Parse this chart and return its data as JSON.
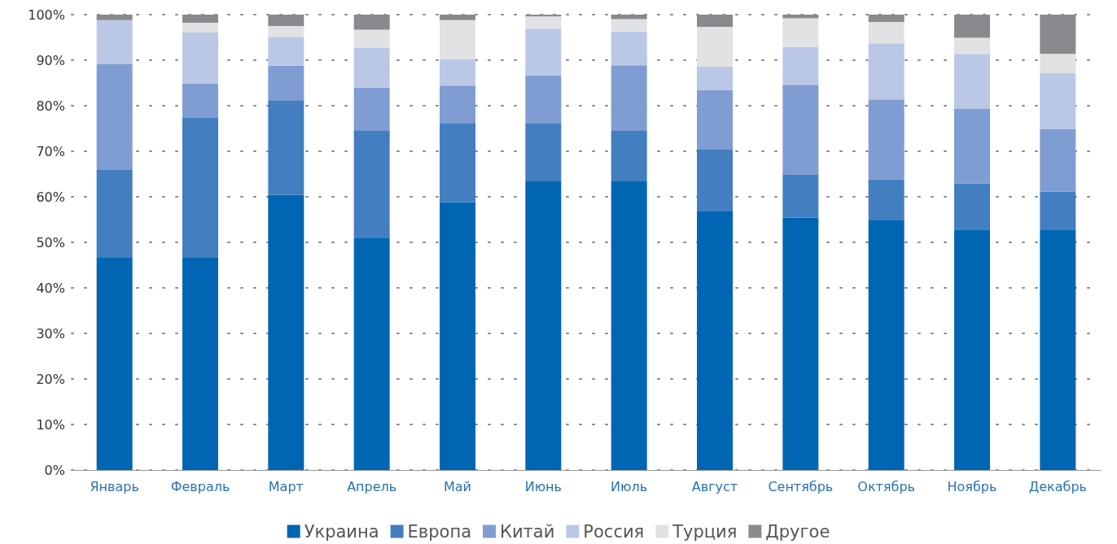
{
  "chart_data": {
    "type": "bar",
    "stacked": true,
    "categories": [
      "Январь",
      "Февраль",
      "Март",
      "Апрель",
      "Май",
      "Июнь",
      "Июль",
      "Август",
      "Сентябрь",
      "Октябрь",
      "Ноябрь",
      "Декабрь"
    ],
    "series": [
      {
        "name": "Украина",
        "color": "#0066b3",
        "values": [
          46.6,
          46.6,
          60.4,
          50.9,
          58.8,
          63.4,
          63.4,
          56.8,
          55.4,
          54.8,
          52.8,
          52.8
        ]
      },
      {
        "name": "Европа",
        "color": "#437ec0",
        "values": [
          19.3,
          30.7,
          20.8,
          23.7,
          17.4,
          12.8,
          11.2,
          13.7,
          9.4,
          9.0,
          10.1,
          8.3
        ]
      },
      {
        "name": "Китай",
        "color": "#7f9dd2",
        "values": [
          23.2,
          7.6,
          7.6,
          9.4,
          8.2,
          10.5,
          14.3,
          13.0,
          19.8,
          17.6,
          16.4,
          13.7
        ]
      },
      {
        "name": "Россия",
        "color": "#bac8e6",
        "values": [
          9.7,
          11.2,
          6.3,
          8.7,
          5.8,
          10.2,
          7.4,
          5.1,
          8.3,
          12.3,
          12.1,
          12.4
        ]
      },
      {
        "name": "Турция",
        "color": "#e1e2e4",
        "values": [
          0,
          2.1,
          2.4,
          4.0,
          8.6,
          2.7,
          2.7,
          8.7,
          6.3,
          4.7,
          3.5,
          4.2
        ]
      },
      {
        "name": "Другое",
        "color": "#898a8e",
        "values": [
          1.2,
          1.8,
          2.5,
          3.3,
          1.2,
          0.4,
          1.0,
          2.7,
          0.8,
          1.6,
          5.1,
          8.6
        ]
      }
    ],
    "ylim": [
      0,
      100
    ],
    "yticks": [
      {
        "value": 0,
        "label": "0%"
      },
      {
        "value": 10,
        "label": "10%"
      },
      {
        "value": 20,
        "label": "20%"
      },
      {
        "value": 30,
        "label": "30%"
      },
      {
        "value": 40,
        "label": "40%"
      },
      {
        "value": 50,
        "label": "50%"
      },
      {
        "value": 60,
        "label": "60%"
      },
      {
        "value": 70,
        "label": "70%"
      },
      {
        "value": 80,
        "label": "80%"
      },
      {
        "value": 90,
        "label": "90%"
      },
      {
        "value": 100,
        "label": "100%"
      }
    ],
    "grid": "y",
    "legend": "bottom"
  }
}
